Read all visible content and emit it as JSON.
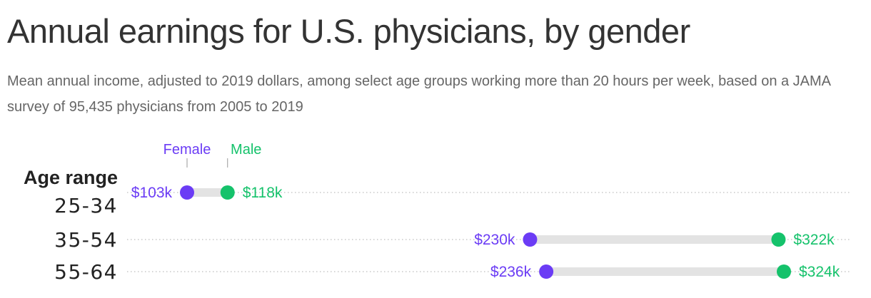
{
  "title": "Annual earnings for U.S. physicians, by gender",
  "subtitle": "Mean annual income, adjusted to 2019 dollars, among select age groups working more than 20 hours per week, based on a JAMA survey of 95,435 physicians from 2005 to 2019",
  "colors": {
    "female": "#6b3cf5",
    "male": "#15c26b",
    "bar": "#e3e3e3",
    "grid": "#c9c9c9",
    "title": "#333333",
    "subtitle": "#666666"
  },
  "chart_data": {
    "type": "dumbbell",
    "title": "Annual earnings for U.S. physicians, by gender",
    "subtitle": "Mean annual income, adjusted to 2019 dollars, among select age groups working more than 20 hours per week, based on a JAMA survey of 95,435 physicians from 2005 to 2019",
    "ylabel": "Age range",
    "categories": [
      "25-34",
      "35-54",
      "55-64"
    ],
    "unit": "thousand USD (2019)",
    "series": [
      {
        "name": "Female",
        "values": [
          103,
          230,
          236
        ],
        "labels": [
          "$103k",
          "$230k",
          "$236k"
        ]
      },
      {
        "name": "Male",
        "values": [
          118,
          322,
          324
        ],
        "labels": [
          "$118k",
          "$322k",
          "$324k"
        ]
      }
    ],
    "xlim": [
      103,
      324
    ],
    "legend": "top-left",
    "grid": "dotted horizontal"
  }
}
